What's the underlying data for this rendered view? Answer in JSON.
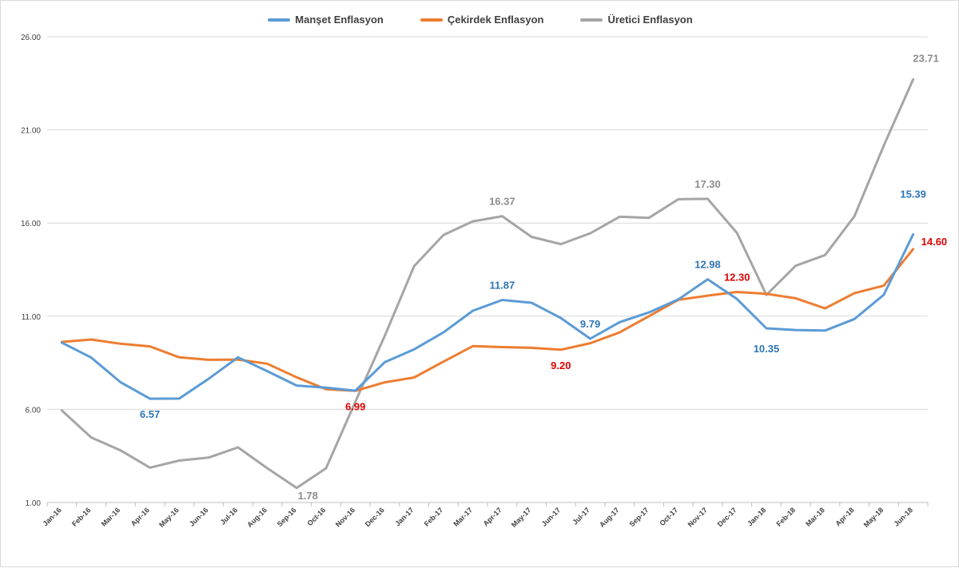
{
  "chart_data": {
    "type": "line",
    "title": "",
    "xlabel": "",
    "ylabel": "",
    "ylim": [
      1,
      26
    ],
    "yticks": [
      "1.00",
      "6.00",
      "11.00",
      "16.00",
      "21.00",
      "26.00"
    ],
    "grid": "horizontal",
    "legend_position": "top-center",
    "categories": [
      "Jan-16",
      "Feb-16",
      "Mar-16",
      "Apr-16",
      "May-16",
      "Jun-16",
      "Jul-16",
      "Aug-16",
      "Sep-16",
      "Oct-16",
      "Nov-16",
      "Dec-16",
      "Jan-17",
      "Feb-17",
      "Mar-17",
      "Apr-17",
      "May-17",
      "Jun-17",
      "Jul-17",
      "Aug-17",
      "Sep-17",
      "Oct-17",
      "Nov-17",
      "Dec-17",
      "Jan-18",
      "Feb-18",
      "Mar-18",
      "Apr-18",
      "May-18",
      "Jun-18"
    ],
    "series": [
      {
        "name": "Manşet Enflasyon",
        "color": "#5b9bd5",
        "values": [
          9.58,
          8.78,
          7.46,
          6.57,
          6.58,
          7.64,
          8.79,
          8.05,
          7.28,
          7.16,
          7.0,
          8.53,
          9.22,
          10.13,
          11.29,
          11.87,
          11.72,
          10.9,
          9.79,
          10.68,
          11.2,
          11.9,
          12.98,
          11.92,
          10.35,
          10.26,
          10.23,
          10.85,
          12.15,
          15.39
        ]
      },
      {
        "name": "Çekirdek Enflasyon",
        "color": "#ed7d31",
        "values": [
          9.62,
          9.75,
          9.52,
          9.38,
          8.79,
          8.66,
          8.67,
          8.45,
          7.72,
          7.08,
          6.99,
          7.45,
          7.71,
          8.56,
          9.39,
          9.34,
          9.3,
          9.2,
          9.55,
          10.13,
          11.0,
          11.88,
          12.1,
          12.3,
          12.2,
          11.96,
          11.42,
          12.24,
          12.64,
          14.6
        ]
      },
      {
        "name": "Üretici Enflasyon",
        "color": "#a5a5a5",
        "values": [
          5.94,
          4.49,
          3.8,
          2.87,
          3.25,
          3.41,
          3.96,
          2.84,
          1.78,
          2.84,
          6.41,
          9.94,
          13.69,
          15.36,
          16.09,
          16.37,
          15.26,
          14.87,
          15.45,
          16.34,
          16.28,
          17.28,
          17.3,
          15.47,
          12.14,
          13.71,
          14.28,
          16.37,
          20.16,
          23.71
        ]
      }
    ],
    "data_labels": [
      {
        "series": 0,
        "index": 3,
        "text": "6.57",
        "color": "#2e75b6",
        "pos": "below"
      },
      {
        "series": 0,
        "index": 15,
        "text": "11.87",
        "color": "#2e75b6",
        "pos": "above"
      },
      {
        "series": 0,
        "index": 18,
        "text": "9.79",
        "color": "#2e75b6",
        "pos": "above"
      },
      {
        "series": 0,
        "index": 22,
        "text": "12.98",
        "color": "#2e75b6",
        "pos": "above"
      },
      {
        "series": 0,
        "index": 24,
        "text": "10.35",
        "color": "#2e75b6",
        "pos": "below"
      },
      {
        "series": 0,
        "index": 29,
        "text": "15.39",
        "color": "#2e75b6",
        "pos": "aboveleft"
      },
      {
        "series": 1,
        "index": 10,
        "text": "6.99",
        "color": "#e00000",
        "pos": "below"
      },
      {
        "series": 1,
        "index": 17,
        "text": "9.20",
        "color": "#e00000",
        "pos": "below"
      },
      {
        "series": 1,
        "index": 23,
        "text": "12.30",
        "color": "#e00000",
        "pos": "above"
      },
      {
        "series": 1,
        "index": 29,
        "text": "14.60",
        "color": "#e00000",
        "pos": "right"
      },
      {
        "series": 2,
        "index": 8,
        "text": "1.78",
        "color": "#8c8c8c",
        "pos": "belowright"
      },
      {
        "series": 2,
        "index": 15,
        "text": "16.37",
        "color": "#8c8c8c",
        "pos": "above"
      },
      {
        "series": 2,
        "index": 22,
        "text": "17.30",
        "color": "#8c8c8c",
        "pos": "above"
      },
      {
        "series": 2,
        "index": 29,
        "text": "23.71",
        "color": "#8c8c8c",
        "pos": "above"
      }
    ]
  }
}
